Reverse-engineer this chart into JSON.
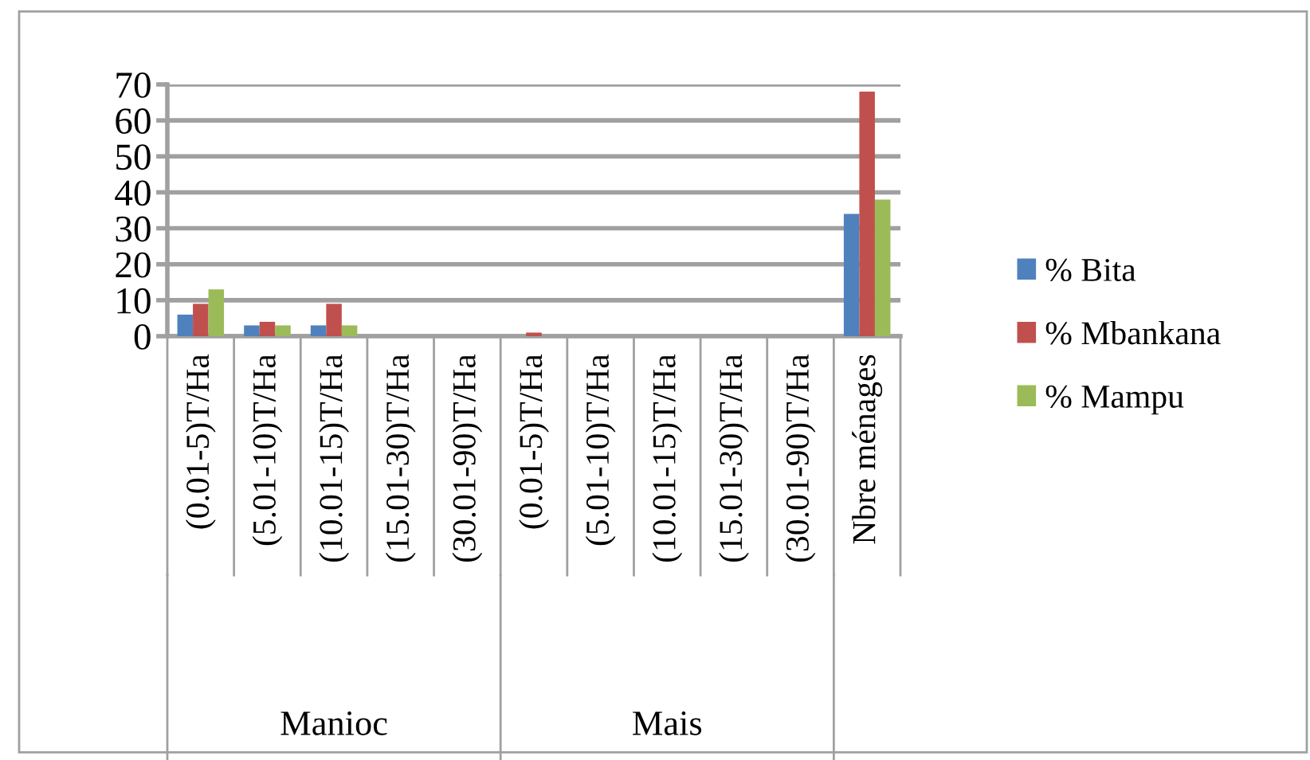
{
  "chart_data": {
    "type": "bar",
    "categories": [
      "(0.01-5)T/Ha",
      "(5.01-10)T/Ha",
      "(10.01-15)T/Ha",
      "(15.01-30)T/Ha",
      "(30.01-90)T/Ha",
      "(0.01-5)T/Ha",
      "(5.01-10)T/Ha",
      "(10.01-15)T/Ha",
      "(15.01-30)T/Ha",
      "(30.01-90)T/Ha",
      "Nbre ménages"
    ],
    "series": [
      {
        "name": "% Bita",
        "color": "#4f81bd",
        "values": [
          6,
          3,
          3,
          0,
          0,
          0,
          0,
          0,
          0,
          0,
          34
        ]
      },
      {
        "name": "% Mbankana",
        "color": "#c0504d",
        "values": [
          9,
          4,
          9,
          0,
          0,
          1,
          0,
          0,
          0,
          0,
          68
        ]
      },
      {
        "name": "% Mampu",
        "color": "#9bbb59",
        "values": [
          13,
          3,
          3,
          0,
          0,
          0,
          0,
          0,
          0,
          0,
          38
        ]
      }
    ],
    "annotations": [
      "Manioc",
      "Mais"
    ],
    "ylim": [
      0,
      70
    ],
    "yticks": [
      0,
      10,
      20,
      30,
      40,
      50,
      60,
      70
    ],
    "grid": "y",
    "legend": "right"
  }
}
